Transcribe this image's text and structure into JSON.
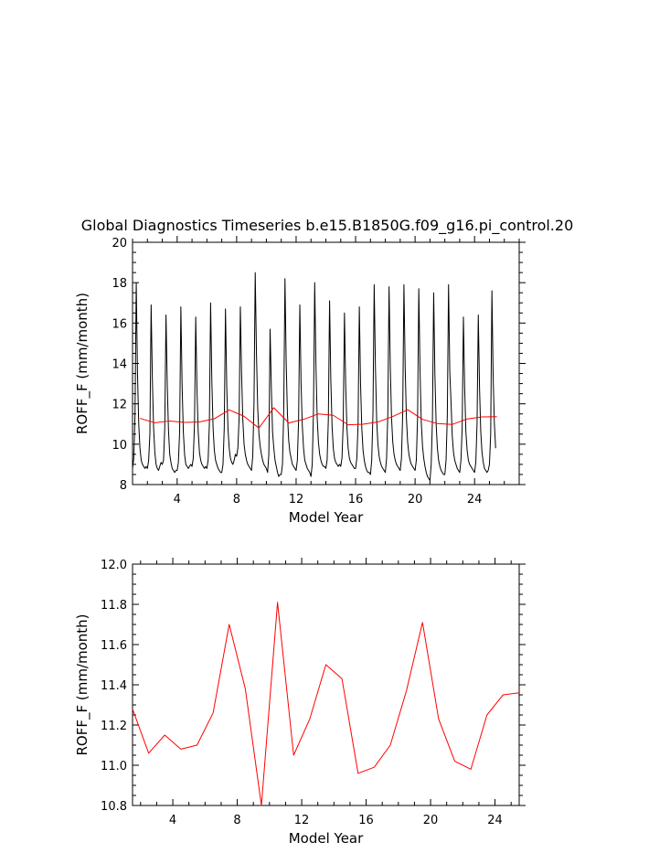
{
  "title": "Global Diagnostics Timeseries b.e15.B1850G.f09_g16.pi_control.20",
  "colors": {
    "monthly": "#000000",
    "annual": "#ff0000",
    "frame": "#000000"
  },
  "chart_data": [
    {
      "type": "line",
      "xlabel": "Model Year",
      "ylabel": "ROFF_F (mm/month)",
      "xlim": [
        1,
        27
      ],
      "ylim": [
        8,
        20
      ],
      "xticks": [
        4,
        8,
        12,
        16,
        20,
        24
      ],
      "xtick_labels": [
        "4",
        "8",
        "12",
        "16",
        "20",
        "24"
      ],
      "yticks": [
        8,
        10,
        12,
        14,
        16,
        18,
        20
      ],
      "ytick_labels": [
        "8",
        "10",
        "12",
        "14",
        "16",
        "18",
        "20"
      ],
      "grid": false,
      "series": [
        {
          "color": "#000000",
          "x_start": 1,
          "x_step": 0.0833333,
          "values": [
            8.8,
            9.3,
            11.5,
            18.0,
            13.5,
            11.0,
            9.8,
            9.2,
            9.0,
            8.9,
            8.8,
            8.9,
            8.8,
            9.2,
            10.5,
            16.9,
            13.2,
            10.8,
            9.6,
            9.0,
            8.8,
            8.7,
            8.9,
            9.1,
            9.0,
            9.2,
            10.8,
            16.4,
            13.0,
            10.7,
            9.5,
            9.1,
            8.8,
            8.7,
            8.6,
            8.7,
            8.7,
            9.1,
            10.6,
            16.8,
            12.9,
            10.6,
            9.5,
            9.0,
            8.9,
            8.8,
            8.9,
            9.0,
            8.9,
            9.3,
            11.0,
            16.3,
            12.7,
            10.6,
            9.6,
            9.2,
            9.0,
            8.9,
            8.8,
            8.9,
            8.8,
            9.2,
            11.0,
            17.0,
            13.1,
            10.8,
            9.7,
            9.2,
            9.0,
            8.8,
            8.7,
            8.6,
            8.6,
            9.0,
            10.8,
            16.7,
            12.9,
            10.8,
            9.8,
            9.3,
            9.1,
            9.0,
            9.2,
            9.5,
            9.4,
            9.8,
            11.3,
            16.8,
            13.5,
            11.2,
            10.0,
            9.5,
            9.2,
            9.0,
            8.9,
            8.8,
            8.7,
            9.4,
            12.0,
            18.5,
            14.5,
            11.8,
            10.5,
            9.9,
            9.5,
            9.2,
            9.0,
            8.9,
            8.8,
            8.6,
            9.5,
            15.7,
            12.8,
            10.6,
            9.8,
            9.2,
            8.9,
            8.6,
            8.4,
            8.5,
            8.5,
            9.0,
            11.6,
            18.2,
            14.0,
            11.5,
            10.2,
            9.6,
            9.3,
            9.0,
            8.9,
            8.8,
            8.7,
            9.2,
            11.2,
            16.9,
            13.0,
            10.9,
            9.8,
            9.2,
            9.0,
            8.8,
            8.7,
            8.6,
            8.4,
            9.0,
            11.6,
            18.0,
            13.9,
            11.3,
            10.1,
            9.5,
            9.2,
            9.0,
            8.9,
            8.9,
            8.8,
            9.2,
            11.2,
            17.1,
            13.2,
            10.9,
            9.8,
            9.3,
            9.1,
            9.0,
            8.9,
            9.0,
            8.9,
            9.3,
            11.0,
            16.5,
            12.9,
            10.8,
            9.8,
            9.3,
            9.1,
            9.0,
            8.9,
            8.8,
            8.8,
            9.3,
            11.0,
            16.8,
            13.0,
            10.8,
            9.7,
            9.2,
            8.9,
            8.7,
            8.6,
            8.6,
            8.5,
            9.2,
            11.5,
            17.9,
            13.8,
            11.2,
            10.0,
            9.4,
            9.1,
            8.9,
            8.8,
            8.7,
            8.6,
            9.3,
            11.5,
            17.8,
            13.8,
            11.3,
            10.1,
            9.5,
            9.2,
            9.0,
            8.9,
            8.8,
            8.7,
            9.3,
            11.5,
            17.9,
            13.8,
            11.3,
            10.1,
            9.5,
            9.2,
            9.0,
            8.9,
            8.8,
            8.7,
            9.2,
            11.3,
            17.7,
            13.6,
            11.1,
            9.9,
            9.3,
            8.9,
            8.6,
            8.4,
            8.3,
            8.2,
            9.0,
            11.2,
            17.5,
            13.4,
            11.0,
            9.8,
            9.2,
            8.9,
            8.7,
            8.6,
            8.5,
            8.5,
            9.2,
            11.4,
            17.9,
            13.6,
            12.1,
            10.4,
            9.6,
            9.2,
            9.0,
            8.8,
            8.7,
            8.6,
            9.2,
            10.8,
            16.3,
            12.8,
            10.6,
            9.7,
            9.2,
            9.0,
            8.9,
            8.8,
            8.7,
            8.6,
            9.1,
            11.0,
            16.4,
            12.8,
            10.6,
            9.6,
            9.1,
            8.8,
            8.7,
            8.6,
            8.7,
            9.0,
            10.5,
            17.6,
            13.3,
            11.0,
            9.8
          ]
        },
        {
          "color": "#ff0000",
          "x_start": 1.5,
          "x_step": 1,
          "values": [
            11.28,
            11.06,
            11.15,
            11.08,
            11.1,
            11.26,
            11.7,
            11.38,
            10.8,
            11.81,
            11.05,
            11.23,
            11.5,
            11.43,
            10.96,
            10.99,
            11.1,
            11.37,
            11.71,
            11.23,
            11.02,
            10.98,
            11.25,
            11.35,
            11.36
          ]
        }
      ]
    },
    {
      "type": "line",
      "xlabel": "Model Year",
      "ylabel": "ROFF_F (mm/month)",
      "xlim": [
        1.5,
        25.5
      ],
      "ylim": [
        10.8,
        12.0
      ],
      "xticks": [
        4,
        8,
        12,
        16,
        20,
        24
      ],
      "xtick_labels": [
        "4",
        "8",
        "12",
        "16",
        "20",
        "24"
      ],
      "yticks": [
        10.8,
        11.0,
        11.2,
        11.4,
        11.6,
        11.8,
        12.0
      ],
      "ytick_labels": [
        "10.8",
        "11.0",
        "11.2",
        "11.4",
        "11.6",
        "11.8",
        "12.0"
      ],
      "grid": false,
      "series": [
        {
          "color": "#ff0000",
          "x_start": 1.5,
          "x_step": 1,
          "values": [
            11.28,
            11.06,
            11.15,
            11.08,
            11.1,
            11.26,
            11.7,
            11.38,
            10.8,
            11.81,
            11.05,
            11.23,
            11.5,
            11.43,
            10.96,
            10.99,
            11.1,
            11.37,
            11.71,
            11.23,
            11.02,
            10.98,
            11.25,
            11.35,
            11.36
          ]
        }
      ]
    }
  ]
}
